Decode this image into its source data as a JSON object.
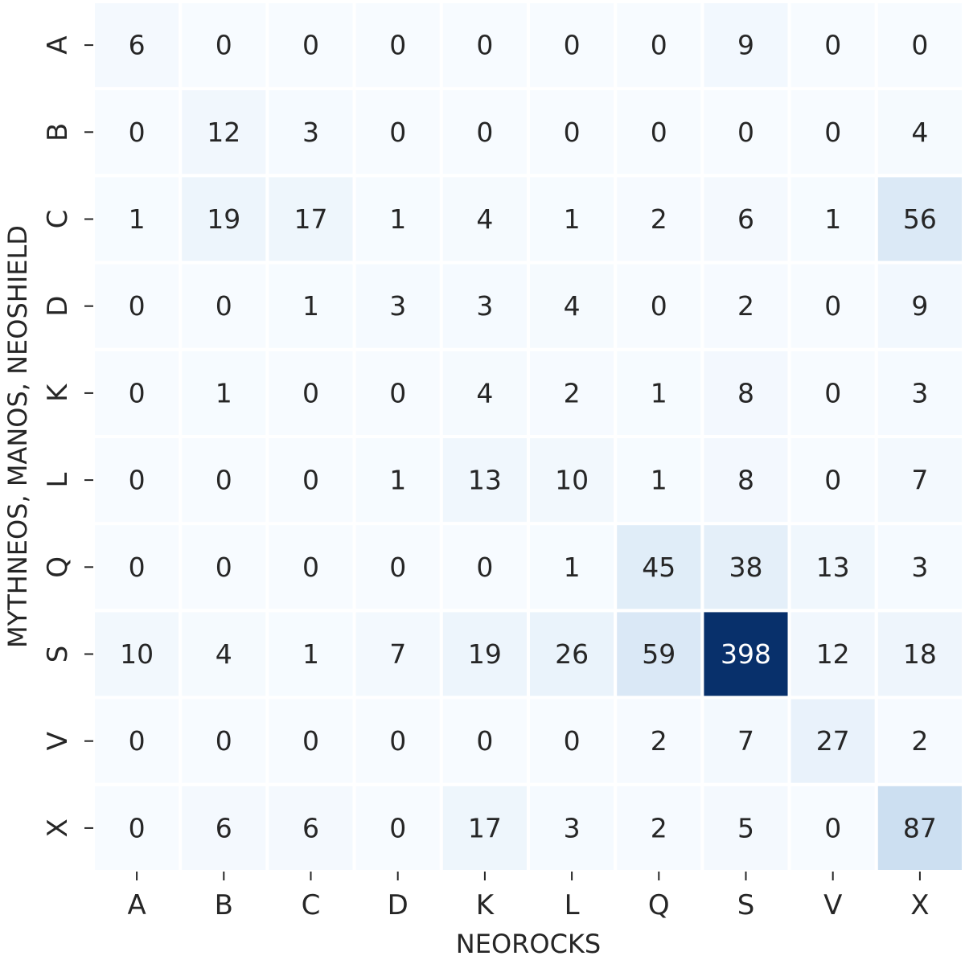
{
  "chart_data": {
    "type": "heatmap",
    "xlabel": "NEOROCKS",
    "ylabel": "MYTHNEOS, MANOS, NEOSHIELD",
    "x_categories": [
      "A",
      "B",
      "C",
      "D",
      "K",
      "L",
      "Q",
      "S",
      "V",
      "X"
    ],
    "y_categories": [
      "A",
      "B",
      "C",
      "D",
      "K",
      "L",
      "Q",
      "S",
      "V",
      "X"
    ],
    "values": [
      [
        6,
        0,
        0,
        0,
        0,
        0,
        0,
        9,
        0,
        0
      ],
      [
        0,
        12,
        3,
        0,
        0,
        0,
        0,
        0,
        0,
        4
      ],
      [
        1,
        19,
        17,
        1,
        4,
        1,
        2,
        6,
        1,
        56
      ],
      [
        0,
        0,
        1,
        3,
        3,
        4,
        0,
        2,
        0,
        9
      ],
      [
        0,
        1,
        0,
        0,
        4,
        2,
        1,
        8,
        0,
        3
      ],
      [
        0,
        0,
        0,
        1,
        13,
        10,
        1,
        8,
        0,
        7
      ],
      [
        0,
        0,
        0,
        0,
        0,
        1,
        45,
        38,
        13,
        3
      ],
      [
        10,
        4,
        1,
        7,
        19,
        26,
        59,
        398,
        12,
        18
      ],
      [
        0,
        0,
        0,
        0,
        0,
        0,
        2,
        7,
        27,
        2
      ],
      [
        0,
        6,
        6,
        0,
        17,
        3,
        2,
        5,
        0,
        87
      ]
    ],
    "colormap": "Blues",
    "value_range": [
      0,
      398
    ],
    "colorbar": false,
    "grid": false
  }
}
